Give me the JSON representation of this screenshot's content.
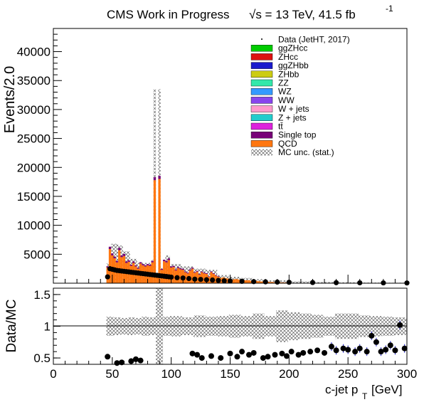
{
  "header": {
    "title": "CMS Work in Progress",
    "sqrt_s": "√s = 13 TeV, 41.5 fb",
    "lumi_exp": "-1"
  },
  "chart_data": [
    {
      "panel": "main",
      "type": "bar",
      "ylabel": "Events/2.0",
      "xlim": [
        0,
        300
      ],
      "ylim": [
        0,
        44000
      ],
      "yticks": [
        "5000",
        "10000",
        "15000",
        "20000",
        "25000",
        "30000",
        "35000",
        "40000"
      ],
      "ytick_values": [
        5000,
        10000,
        15000,
        20000,
        25000,
        30000,
        35000,
        40000
      ],
      "legend_position": "top-right",
      "legend": [
        {
          "label": "Data (JetHT, 2017)",
          "color": "#000000",
          "kind": "marker"
        },
        {
          "label": "ggZHcc",
          "color": "#00cc00",
          "kind": "box"
        },
        {
          "label": "ZHcc",
          "color": "#dd1111",
          "kind": "box"
        },
        {
          "label": "ggZHbb",
          "color": "#1a1acc",
          "kind": "box"
        },
        {
          "label": "ZHbb",
          "color": "#cccc11",
          "kind": "box"
        },
        {
          "label": "ZZ",
          "color": "#33e8aa",
          "kind": "box"
        },
        {
          "label": "WZ",
          "color": "#3399ff",
          "kind": "box"
        },
        {
          "label": "WW",
          "color": "#8844ee",
          "kind": "box"
        },
        {
          "label": "W + jets",
          "color": "#ff99cc",
          "kind": "box"
        },
        {
          "label": "Z + jets",
          "color": "#22cccc",
          "kind": "box"
        },
        {
          "label": "tt̄",
          "color": "#dd22dd",
          "kind": "box"
        },
        {
          "label": "Single top",
          "color": "#770077",
          "kind": "box"
        },
        {
          "label": "QCD",
          "color": "#ff7711",
          "kind": "box"
        },
        {
          "label": "MC unc. (stat.)",
          "color": "#555555",
          "kind": "hatch"
        }
      ],
      "series": [
        {
          "name": "QCD",
          "x": [
            46,
            48,
            50,
            52,
            54,
            56,
            58,
            60,
            62,
            64,
            66,
            68,
            70,
            72,
            74,
            76,
            78,
            80,
            82,
            84,
            86,
            88,
            90,
            92,
            94,
            96,
            98,
            100,
            102,
            104,
            106,
            108,
            110,
            112,
            114,
            116,
            118,
            120,
            122,
            124,
            126,
            128,
            130,
            132,
            134,
            136,
            138,
            140,
            142,
            144,
            146,
            148,
            150,
            152,
            154,
            156,
            158,
            160,
            162,
            164,
            166,
            168,
            170,
            172,
            174,
            176,
            178,
            180,
            182,
            184,
            186,
            188,
            190,
            192,
            194,
            196,
            198,
            200
          ],
          "values": [
            2700,
            5900,
            4800,
            4300,
            3600,
            5700,
            4500,
            4700,
            3500,
            3700,
            3000,
            3500,
            2900,
            2500,
            3400,
            3100,
            2900,
            3100,
            3000,
            3600,
            17800,
            1000,
            18000,
            2300,
            3800,
            3600,
            4000,
            2700,
            2800,
            2200,
            2600,
            2400,
            2300,
            1900,
            1700,
            2200,
            2500,
            1800,
            2000,
            1500,
            1900,
            1700,
            1600,
            1100,
            1900,
            1600,
            1300,
            1100,
            900,
            1000,
            900,
            800,
            800,
            600,
            700,
            700,
            600,
            600,
            500,
            500,
            500,
            400,
            400,
            400,
            350,
            300,
            300,
            250,
            250,
            200,
            200,
            150,
            150,
            150,
            120,
            120,
            100,
            100
          ]
        },
        {
          "name": "Single top",
          "x": [
            46,
            48,
            50,
            52,
            54,
            56,
            58,
            60,
            62,
            64,
            66,
            68,
            70,
            72,
            74,
            76,
            78,
            80,
            82,
            84,
            86,
            88,
            90,
            92,
            94,
            96,
            98,
            100,
            102,
            104,
            106,
            108,
            110,
            112,
            114,
            116,
            118,
            120,
            122,
            124,
            126,
            128,
            130,
            132,
            134,
            136,
            138,
            140
          ],
          "values": [
            200,
            400,
            350,
            300,
            250,
            400,
            300,
            350,
            250,
            250,
            200,
            250,
            200,
            180,
            230,
            210,
            200,
            210,
            200,
            250,
            500,
            60,
            550,
            160,
            260,
            250,
            280,
            190,
            190,
            150,
            180,
            170,
            160,
            130,
            120,
            150,
            170,
            120,
            140,
            100,
            130,
            120,
            110,
            80,
            130,
            110,
            90,
            80
          ]
        }
      ],
      "mc_unc_band": {
        "x": [
          46,
          50,
          56,
          60,
          66,
          72,
          78,
          84,
          86,
          88,
          90,
          92,
          96,
          100,
          110,
          120,
          130,
          140,
          150,
          160,
          170,
          180,
          200,
          220,
          240,
          260,
          280,
          300
        ],
        "values": [
          3400,
          6800,
          6500,
          5500,
          4200,
          3500,
          3500,
          4000,
          33500,
          1200,
          33500,
          2600,
          4800,
          3300,
          2900,
          2500,
          2300,
          1400,
          1100,
          900,
          700,
          500,
          300,
          200,
          150,
          100,
          80,
          60
        ]
      },
      "data": {
        "name": "Data (JetHT, 2017)",
        "x": [
          46,
          48,
          50,
          52,
          54,
          56,
          58,
          60,
          62,
          64,
          66,
          68,
          70,
          72,
          74,
          76,
          78,
          80,
          82,
          84,
          86,
          88,
          90,
          92,
          94,
          96,
          98,
          100,
          105,
          110,
          115,
          120,
          125,
          130,
          135,
          140,
          145,
          150,
          160,
          170,
          180,
          190,
          200,
          220,
          240,
          260,
          280,
          300
        ],
        "values": [
          1100,
          2500,
          2400,
          2300,
          2200,
          2150,
          2100,
          2050,
          2000,
          1950,
          1900,
          1850,
          1800,
          1750,
          1700,
          1650,
          1600,
          1550,
          1500,
          1450,
          1400,
          1350,
          1300,
          1250,
          1200,
          1150,
          1100,
          1050,
          950,
          900,
          800,
          700,
          650,
          600,
          550,
          480,
          420,
          380,
          320,
          270,
          230,
          190,
          160,
          120,
          90,
          70,
          55,
          40
        ]
      }
    },
    {
      "panel": "ratio",
      "type": "scatter",
      "ylabel": "Data/MC",
      "xlabel": "c-jet p",
      "xlabel_sub": "T",
      "xlabel_unit": "[GeV]",
      "xlim": [
        0,
        300
      ],
      "ylim": [
        0.4,
        1.6
      ],
      "yticks": [
        "0.5",
        "1",
        "1.5"
      ],
      "ytick_values": [
        0.5,
        1,
        1.5
      ],
      "xticks": [
        "0",
        "50",
        "100",
        "150",
        "200",
        "250",
        "300"
      ],
      "xtick_values": [
        0,
        50,
        100,
        150,
        200,
        250,
        300
      ],
      "reference_line": 1,
      "unc_band": {
        "x": [
          46,
          52,
          58,
          64,
          70,
          76,
          82,
          88,
          94,
          100,
          110,
          120,
          130,
          140,
          150,
          160,
          170,
          180,
          190,
          200,
          210,
          220,
          230,
          240,
          250,
          260,
          270,
          280,
          290,
          300
        ],
        "upper": [
          1.15,
          1.14,
          1.13,
          1.14,
          1.13,
          1.15,
          1.14,
          1.6,
          1.15,
          1.16,
          1.14,
          1.17,
          1.15,
          1.16,
          1.18,
          1.16,
          1.2,
          1.16,
          1.25,
          1.22,
          1.2,
          1.18,
          1.15,
          1.2,
          1.2,
          1.17,
          1.16,
          1.15,
          1.14,
          1.12
        ],
        "lower": [
          0.85,
          0.86,
          0.87,
          0.86,
          0.87,
          0.85,
          0.86,
          0.4,
          0.85,
          0.84,
          0.86,
          0.83,
          0.85,
          0.84,
          0.82,
          0.84,
          0.8,
          0.84,
          0.75,
          0.78,
          0.8,
          0.82,
          0.85,
          0.8,
          0.8,
          0.83,
          0.84,
          0.85,
          0.86,
          0.88
        ]
      },
      "points": {
        "x": [
          46,
          54,
          58,
          66,
          70,
          74,
          118,
          122,
          126,
          134,
          142,
          150,
          156,
          160,
          166,
          170,
          178,
          182,
          188,
          194,
          198,
          202,
          208,
          212,
          218,
          224,
          230,
          236,
          240,
          246,
          250,
          256,
          260,
          266,
          270,
          274,
          278,
          282,
          286,
          290,
          294,
          298
        ],
        "y": [
          0.52,
          0.42,
          0.43,
          0.45,
          0.48,
          0.46,
          0.57,
          0.55,
          0.5,
          0.53,
          0.5,
          0.57,
          0.52,
          0.6,
          0.55,
          0.58,
          0.5,
          0.52,
          0.55,
          0.57,
          0.53,
          0.6,
          0.55,
          0.58,
          0.6,
          0.62,
          0.58,
          0.68,
          0.62,
          0.65,
          0.63,
          0.6,
          0.65,
          0.6,
          0.85,
          0.75,
          0.6,
          0.63,
          0.7,
          0.62,
          1.02,
          0.65
        ]
      }
    }
  ]
}
